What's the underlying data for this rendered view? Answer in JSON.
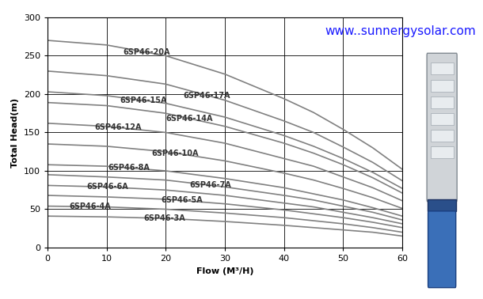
{
  "chart_data": {
    "type": "line",
    "x_label": "Flow (M³/H)",
    "y_label": "Total Head(m)",
    "annotation": "www..sunnergysolar.com",
    "x": [
      0,
      10,
      20,
      30,
      40,
      45,
      50,
      55,
      60
    ],
    "xlim": [
      0,
      60
    ],
    "xticks": [
      0,
      10,
      20,
      30,
      40,
      50,
      60
    ],
    "ylim": [
      0,
      300
    ],
    "yticks": [
      0,
      50,
      100,
      150,
      200,
      250,
      300
    ],
    "grid": true,
    "color": "#808080",
    "series": [
      {
        "name": "6SP46-20A",
        "values": [
          270,
          264,
          250,
          226,
          194,
          176,
          154,
          130,
          102
        ]
      },
      {
        "name": "6SP46-17A",
        "values": [
          230,
          224,
          213,
          192,
          165,
          150,
          131,
          111,
          87
        ]
      },
      {
        "name": "6SP46-15A",
        "values": [
          203,
          198,
          188,
          170,
          146,
          132,
          116,
          98,
          77
        ]
      },
      {
        "name": "6SP46-14A",
        "values": [
          189,
          185,
          175,
          158,
          136,
          123,
          108,
          91,
          71
        ]
      },
      {
        "name": "6SP46-12A",
        "values": [
          162,
          158,
          150,
          136,
          116,
          106,
          92,
          78,
          61
        ]
      },
      {
        "name": "6SP46-10A",
        "values": [
          135,
          132,
          125,
          113,
          97,
          88,
          77,
          65,
          51
        ]
      },
      {
        "name": "6SP46-8A",
        "values": [
          108,
          106,
          100,
          90,
          78,
          70,
          62,
          52,
          41
        ]
      },
      {
        "name": "6SP46-7A",
        "values": [
          95,
          92,
          88,
          79,
          68,
          62,
          54,
          46,
          36
        ]
      },
      {
        "name": "6SP46-6A",
        "values": [
          81,
          79,
          75,
          68,
          58,
          53,
          46,
          39,
          31
        ]
      },
      {
        "name": "6SP46-5A",
        "values": [
          68,
          66,
          63,
          57,
          49,
          44,
          39,
          33,
          26
        ]
      },
      {
        "name": "6SP46-4A",
        "values": [
          54,
          53,
          50,
          45,
          39,
          35,
          31,
          26,
          20
        ]
      },
      {
        "name": "6SP46-3A",
        "values": [
          41,
          40,
          38,
          34,
          29,
          26,
          23,
          20,
          15
        ]
      }
    ]
  }
}
